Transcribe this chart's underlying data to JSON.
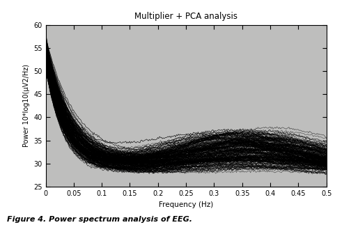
{
  "title": "Multiplier + PCA analysis",
  "xlabel": "Frequency (Hz)",
  "ylabel": "Power 10*log10(μV2/Hz)",
  "xlim": [
    0,
    0.5
  ],
  "ylim": [
    25,
    60
  ],
  "xticks": [
    0,
    0.05,
    0.1,
    0.15,
    0.2,
    0.25,
    0.3,
    0.35,
    0.4,
    0.45,
    0.5
  ],
  "yticks": [
    25,
    30,
    35,
    40,
    45,
    50,
    55,
    60
  ],
  "ax_bg_color": "#bebebd",
  "fig_bg_color": "#ffffff",
  "line_color": "#000000",
  "n_lines": 200,
  "freq_min": 0.001,
  "freq_max": 0.5,
  "n_points": 300,
  "caption": "Figure 4. Power spectrum analysis of EEG.",
  "figsize": [
    5.04,
    3.23
  ],
  "dpi": 100,
  "title_fontsize": 8.5,
  "label_fontsize": 7.5,
  "tick_fontsize": 7
}
